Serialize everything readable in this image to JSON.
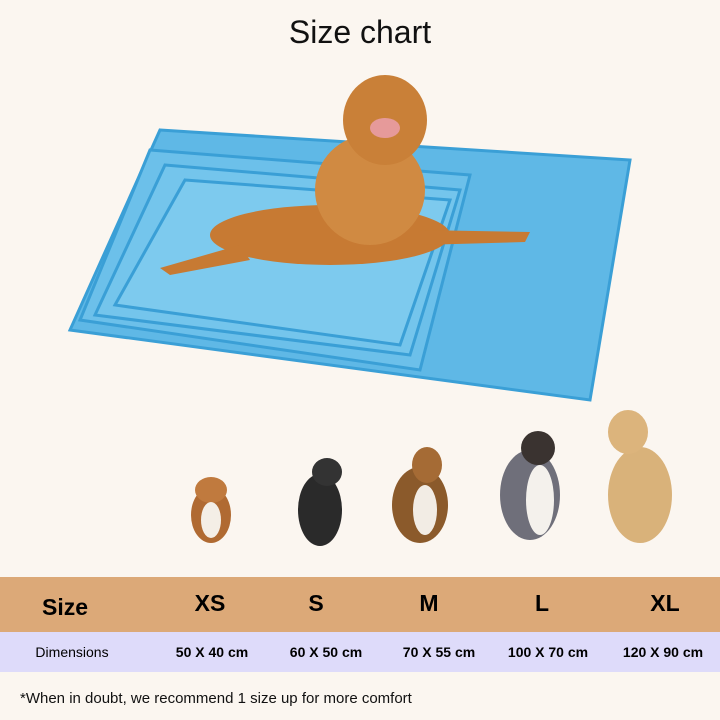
{
  "title": "Size chart",
  "table": {
    "size_header": "Size",
    "dimensions_header": "Dimensions",
    "sizes": [
      {
        "label": "XS",
        "dimensions": "50 X 40 cm"
      },
      {
        "label": "S",
        "dimensions": "60 X 50 cm"
      },
      {
        "label": "M",
        "dimensions": "70 X 55 cm"
      },
      {
        "label": "L",
        "dimensions": "100 X 70 cm"
      },
      {
        "label": "XL",
        "dimensions": "120 X 90 cm"
      }
    ]
  },
  "note": "*When in doubt, we recommend 1 size up for more comfort",
  "colors": {
    "background": "#fbf6f0",
    "size_band": "#dca978",
    "dimension_band": "#dedbfa",
    "mat": "#5fb8e6"
  }
}
